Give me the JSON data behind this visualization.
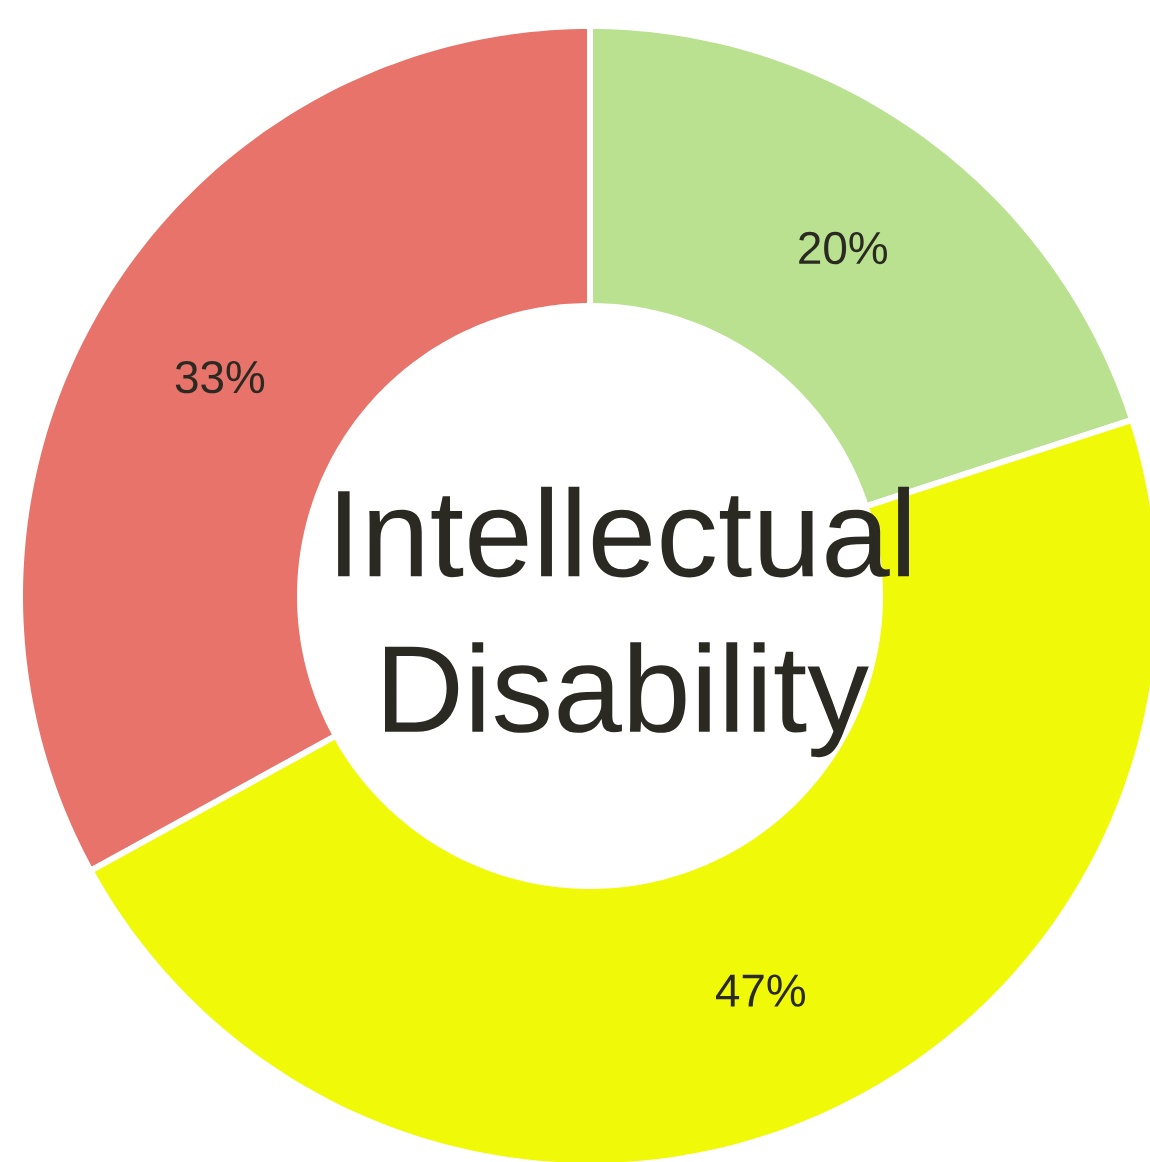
{
  "chart_data": {
    "type": "donut",
    "title": "Intellectual Disability",
    "categories": [
      null,
      null,
      null
    ],
    "values": [
      20,
      47,
      33
    ],
    "colors": [
      "#b9e18f",
      "#f0fa08",
      "#e8736a"
    ],
    "value_labels": [
      "20%",
      "47%",
      "33%"
    ]
  }
}
